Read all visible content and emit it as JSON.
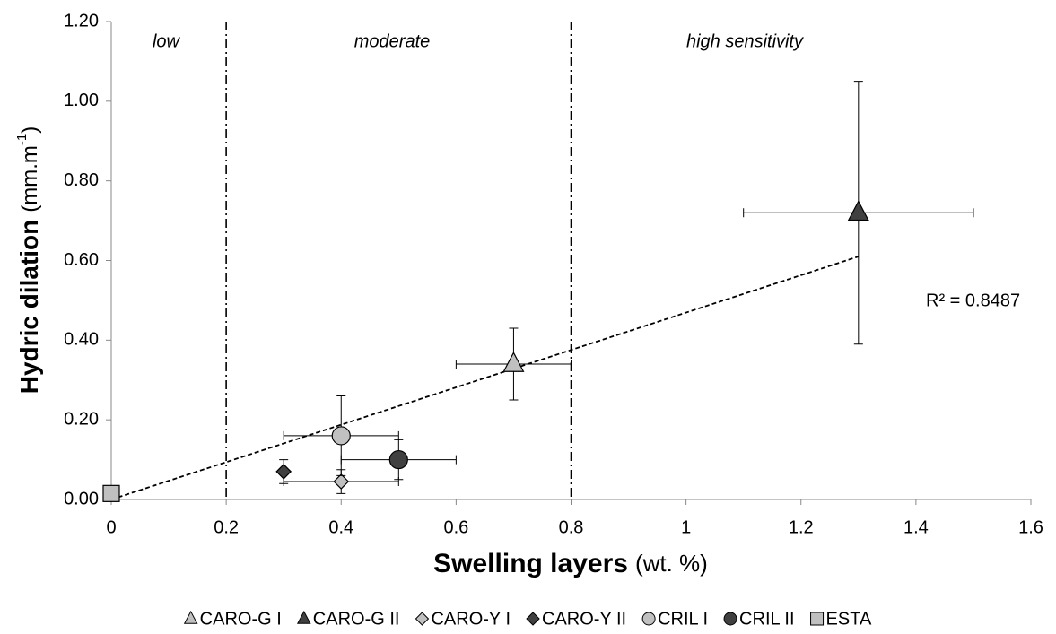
{
  "chart_data": {
    "type": "scatter",
    "x_label": {
      "bold": "Swelling layers",
      "rest": "(wt. %)"
    },
    "y_label": {
      "bold": "Hydric dilation",
      "rest": "(mm.m",
      "sup": "-1",
      "close": ")"
    },
    "xlim": [
      0,
      1.6
    ],
    "xticks": [
      0,
      0.2,
      0.4,
      0.6,
      0.8,
      1,
      1.2,
      1.4,
      1.6
    ],
    "ylim": [
      0,
      1.2
    ],
    "yticks": [
      {
        "value": 0,
        "label": "0.00"
      },
      {
        "value": 0.2,
        "label": "0.20"
      },
      {
        "value": 0.4,
        "label": "0.40"
      },
      {
        "value": 0.6,
        "label": "0.60"
      },
      {
        "value": 0.8,
        "label": "0.80"
      },
      {
        "value": 1.0,
        "label": "1.00"
      },
      {
        "value": 1.2,
        "label": "1.20"
      }
    ],
    "thresholds": [
      0.2,
      0.8
    ],
    "zones": [
      "low",
      "moderate",
      "high sensitivity"
    ],
    "trendline": {
      "x": [
        0,
        1.3
      ],
      "y": [
        0,
        0.61
      ],
      "label": "R² = 0.8487"
    },
    "legend": "bottom",
    "series": [
      {
        "name": "CARO-G I",
        "marker": "triangle",
        "color": "#c0c0c0",
        "x": [
          0.7
        ],
        "values": [
          0.34
        ],
        "x_error": [
          0.1
        ],
        "y_error": [
          0.09
        ]
      },
      {
        "name": "CARO-G II",
        "marker": "triangle",
        "color": "#404040",
        "x": [
          1.3
        ],
        "values": [
          0.72
        ],
        "x_error": [
          0.2
        ],
        "y_error": [
          0.33
        ]
      },
      {
        "name": "CARO-Y I",
        "marker": "diamond",
        "color": "#c0c0c0",
        "x": [
          0.4
        ],
        "values": [
          0.045
        ],
        "x_error": [
          0.1
        ],
        "y_error": [
          0.03
        ]
      },
      {
        "name": "CARO-Y II",
        "marker": "diamond",
        "color": "#404040",
        "x": [
          0.3
        ],
        "values": [
          0.07
        ],
        "y_error": [
          0.03
        ]
      },
      {
        "name": "CRIL I",
        "marker": "circle",
        "color": "#c0c0c0",
        "x": [
          0.4
        ],
        "values": [
          0.16
        ],
        "x_error": [
          0.1
        ],
        "y_error": [
          0.1
        ]
      },
      {
        "name": "CRIL II",
        "marker": "circle",
        "color": "#404040",
        "x": [
          0.5
        ],
        "values": [
          0.1
        ],
        "x_error": [
          0.1
        ],
        "y_error": [
          0.05
        ]
      },
      {
        "name": "ESTA",
        "marker": "square",
        "color": "#c0c0c0",
        "x": [
          0
        ],
        "values": [
          0.015
        ]
      }
    ]
  }
}
